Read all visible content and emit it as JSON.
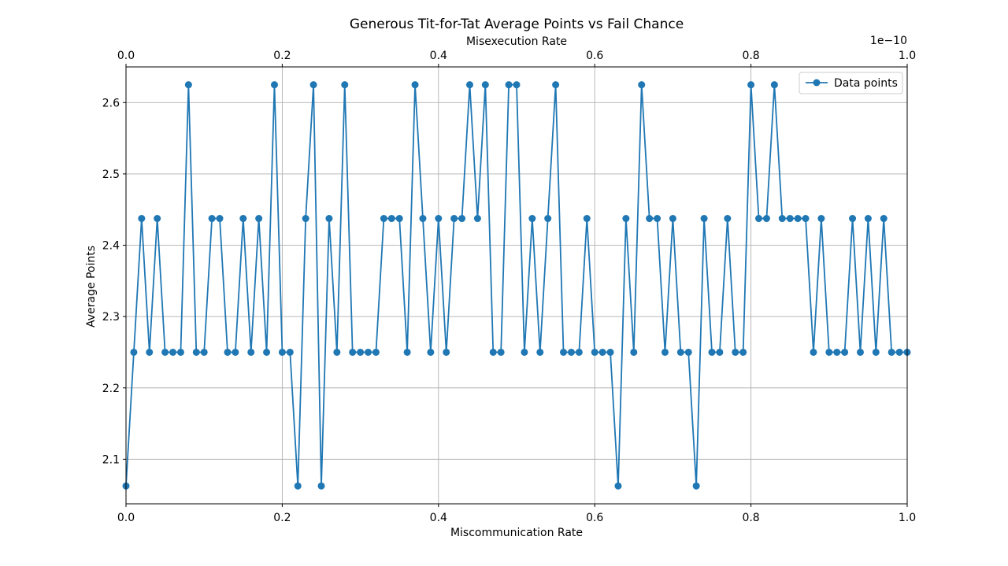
{
  "chart_data": {
    "type": "line",
    "title": "Generous Tit-for-Tat Average Points vs Fail Chance",
    "xlabel": "Miscommunication Rate",
    "ylabel": "Average Points",
    "x2label": "Misexecution Rate",
    "x2_offset_text": "1e−10",
    "xlim": [
      0,
      1
    ],
    "ylim": [
      2.0375,
      2.65
    ],
    "x2lim": [
      0,
      1
    ],
    "xticks": [
      0,
      0.2,
      0.4,
      0.6,
      0.8,
      1.0
    ],
    "xtick_labels": [
      "0.0",
      "0.2",
      "0.4",
      "0.6",
      "0.8",
      "1.0"
    ],
    "x2ticks": [
      0,
      0.2,
      0.4,
      0.6,
      0.8,
      1.0
    ],
    "x2tick_labels": [
      "0.0",
      "0.2",
      "0.4",
      "0.6",
      "0.8",
      "1.0"
    ],
    "yticks": [
      2.1,
      2.2,
      2.3,
      2.4,
      2.5,
      2.6
    ],
    "ytick_labels": [
      "2.1",
      "2.2",
      "2.3",
      "2.4",
      "2.5",
      "2.6"
    ],
    "grid": true,
    "legend_position": "top-right",
    "color": "#1f77b4",
    "series": [
      {
        "name": "Data points",
        "marker": "circle",
        "x": [
          0.0,
          0.01,
          0.02,
          0.03,
          0.04,
          0.05,
          0.06,
          0.07,
          0.08,
          0.09,
          0.1,
          0.11,
          0.12,
          0.13,
          0.14,
          0.15,
          0.16,
          0.17,
          0.18,
          0.19,
          0.2,
          0.21,
          0.22,
          0.23,
          0.24,
          0.25,
          0.26,
          0.27,
          0.28,
          0.29,
          0.3,
          0.31,
          0.32,
          0.33,
          0.34,
          0.35,
          0.36,
          0.37,
          0.38,
          0.39,
          0.4,
          0.41,
          0.42,
          0.43,
          0.44,
          0.45,
          0.46,
          0.47,
          0.48,
          0.49,
          0.5,
          0.51,
          0.52,
          0.53,
          0.54,
          0.55,
          0.56,
          0.57,
          0.58,
          0.59,
          0.6,
          0.61,
          0.62,
          0.63,
          0.64,
          0.65,
          0.66,
          0.67,
          0.68,
          0.69,
          0.7,
          0.71,
          0.72,
          0.73,
          0.74,
          0.75,
          0.76,
          0.77,
          0.78,
          0.79,
          0.8,
          0.81,
          0.82,
          0.83,
          0.84,
          0.85,
          0.86,
          0.87,
          0.88,
          0.89,
          0.9,
          0.91,
          0.92,
          0.93,
          0.94,
          0.95,
          0.96,
          0.97,
          0.98,
          0.99,
          1.0
        ],
        "y": [
          2.0625,
          2.25,
          2.4375,
          2.25,
          2.4375,
          2.25,
          2.25,
          2.25,
          2.625,
          2.25,
          2.25,
          2.4375,
          2.4375,
          2.25,
          2.25,
          2.4375,
          2.25,
          2.4375,
          2.25,
          2.625,
          2.25,
          2.25,
          2.0625,
          2.4375,
          2.625,
          2.0625,
          2.4375,
          2.25,
          2.625,
          2.25,
          2.25,
          2.25,
          2.25,
          2.4375,
          2.4375,
          2.4375,
          2.25,
          2.625,
          2.4375,
          2.25,
          2.4375,
          2.25,
          2.4375,
          2.4375,
          2.625,
          2.4375,
          2.625,
          2.25,
          2.25,
          2.625,
          2.625,
          2.25,
          2.4375,
          2.25,
          2.4375,
          2.625,
          2.25,
          2.25,
          2.25,
          2.4375,
          2.25,
          2.25,
          2.25,
          2.0625,
          2.4375,
          2.25,
          2.625,
          2.4375,
          2.4375,
          2.25,
          2.4375,
          2.25,
          2.25,
          2.0625,
          2.4375,
          2.25,
          2.25,
          2.4375,
          2.25,
          2.25,
          2.625,
          2.4375,
          2.4375,
          2.625,
          2.4375,
          2.4375,
          2.4375,
          2.4375,
          2.25,
          2.4375,
          2.25,
          2.25,
          2.25,
          2.4375,
          2.25,
          2.4375,
          2.25,
          2.4375,
          2.25,
          2.25,
          2.25
        ]
      }
    ]
  }
}
